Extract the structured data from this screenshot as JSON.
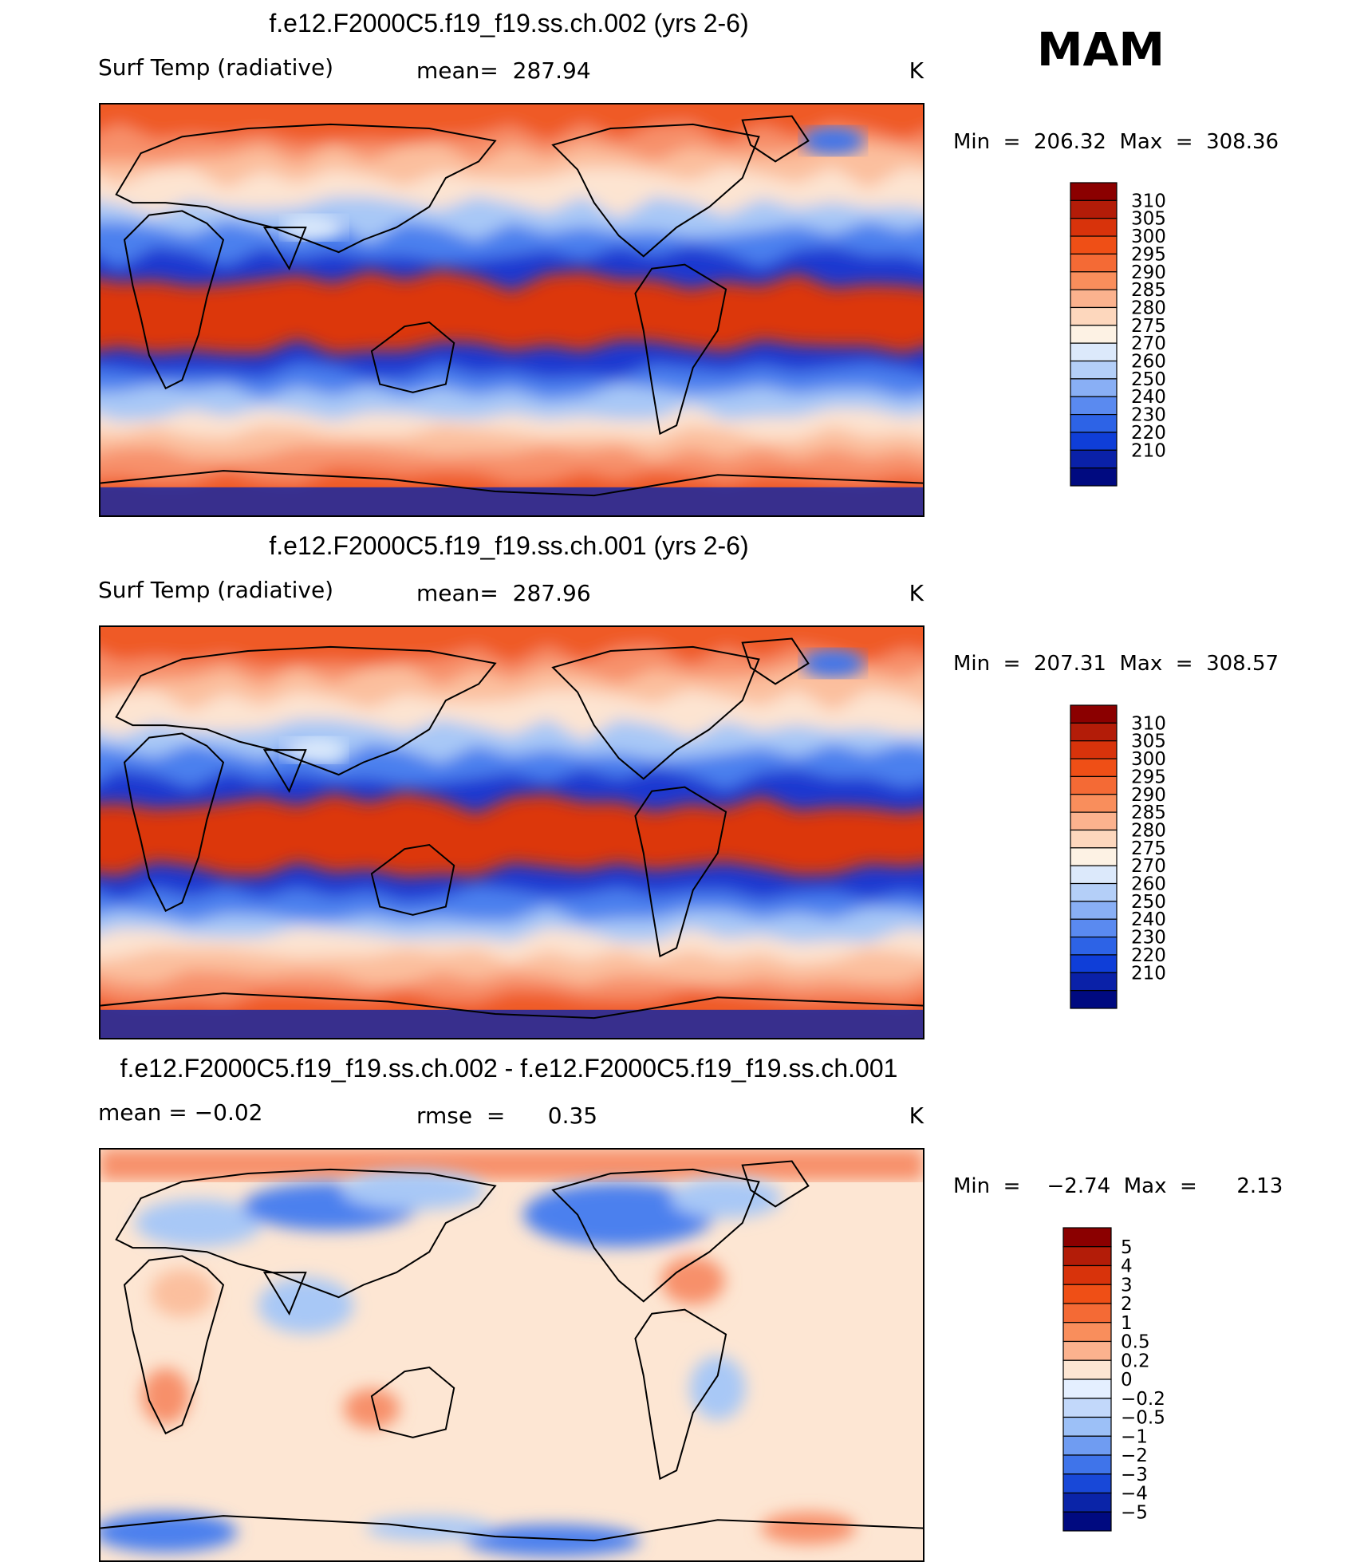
{
  "season": "MAM",
  "panels": [
    {
      "title": "f.e12.F2000C5.f19_f19.ss.ch.002 (yrs 2-6)",
      "subtitle_left": "Surf Temp (radiative)",
      "subtitle_center": "mean=  287.94",
      "units": "K",
      "minmax": "Min  =  206.32  Max  =  308.36",
      "colorbar_labels": [
        "310",
        "305",
        "300",
        "295",
        "290",
        "285",
        "280",
        "275",
        "270",
        "260",
        "250",
        "240",
        "230",
        "220",
        "210"
      ],
      "colorbar_colors": [
        "#8b0000",
        "#b31c08",
        "#d8330b",
        "#ef4f16",
        "#f46a35",
        "#f98e5c",
        "#fbb28e",
        "#fdd7bd",
        "#fdf2e4",
        "#dce9fb",
        "#b4cff8",
        "#89aff5",
        "#5a8af0",
        "#2d63e6",
        "#0f3ed8",
        "#0a21a8",
        "#000a80"
      ],
      "map_colors": [
        "#1a39d0",
        "#4b80ee",
        "#a8c8f6",
        "#fde4d1",
        "#fbbf9e",
        "#f7906a",
        "#ef5a27",
        "#dc370b"
      ],
      "map_levels": [
        0.13,
        0.22,
        0.31,
        0.42,
        0.56,
        0.7,
        0.85,
        1.0
      ]
    },
    {
      "title": "f.e12.F2000C5.f19_f19.ss.ch.001 (yrs 2-6)",
      "subtitle_left": "Surf Temp (radiative)",
      "subtitle_center": "mean=  287.96",
      "units": "K",
      "minmax": "Min  =  207.31  Max  =  308.57",
      "colorbar_labels": [
        "310",
        "305",
        "300",
        "295",
        "290",
        "285",
        "280",
        "275",
        "270",
        "260",
        "250",
        "240",
        "230",
        "220",
        "210"
      ],
      "colorbar_colors": [
        "#8b0000",
        "#b31c08",
        "#d8330b",
        "#ef4f16",
        "#f46a35",
        "#f98e5c",
        "#fbb28e",
        "#fdd7bd",
        "#fdf2e4",
        "#dce9fb",
        "#b4cff8",
        "#89aff5",
        "#5a8af0",
        "#2d63e6",
        "#0f3ed8",
        "#0a21a8",
        "#000a80"
      ],
      "map_colors": [
        "#1a39d0",
        "#4b80ee",
        "#a8c8f6",
        "#fde4d1",
        "#fbbf9e",
        "#f7906a",
        "#ef5a27",
        "#dc370b"
      ],
      "map_levels": [
        0.13,
        0.22,
        0.31,
        0.42,
        0.56,
        0.7,
        0.85,
        1.0
      ]
    },
    {
      "title": "f.e12.F2000C5.f19_f19.ss.ch.002 - f.e12.F2000C5.f19_f19.ss.ch.001",
      "subtitle_left": "mean  =    −0.02",
      "subtitle_center": "rmse  =      0.35",
      "units": "K",
      "minmax": "Min  =    −2.74  Max  =      2.13",
      "colorbar_labels": [
        "5",
        "4",
        "3",
        "2",
        "1",
        "0.5",
        "0.2",
        "0",
        "−0.2",
        "−0.5",
        "−1",
        "−2",
        "−3",
        "−4",
        "−5"
      ],
      "colorbar_colors": [
        "#8b0000",
        "#b31c08",
        "#d8330b",
        "#ef4f16",
        "#f46a35",
        "#f98e5c",
        "#fbb28e",
        "#fde6d3",
        "#e4efff",
        "#c2d8fa",
        "#9cc0f7",
        "#6f9cf2",
        "#3f74ea",
        "#1848d8",
        "#0a24a8",
        "#000a80"
      ],
      "map_colors": [
        "#4b80ee",
        "#a8c8f6",
        "#dceafb",
        "#fde6d3",
        "#fbbf9e",
        "#f7906a"
      ],
      "map_levels": [
        0.08,
        0.2,
        0.32,
        0.75,
        0.9,
        1.0
      ]
    }
  ],
  "chart_data": [
    {
      "type": "heatmap",
      "title": "f.e12.F2000C5.f19_f19.ss.ch.002 (yrs 2-6)",
      "variable": "Surf Temp (radiative)",
      "units": "K",
      "mean": 287.94,
      "min": 206.32,
      "max": 308.36,
      "contour_levels": [
        210,
        220,
        230,
        240,
        250,
        260,
        270,
        275,
        280,
        285,
        290,
        295,
        300,
        305,
        310
      ]
    },
    {
      "type": "heatmap",
      "title": "f.e12.F2000C5.f19_f19.ss.ch.001 (yrs 2-6)",
      "variable": "Surf Temp (radiative)",
      "units": "K",
      "mean": 287.96,
      "min": 207.31,
      "max": 308.57,
      "contour_levels": [
        210,
        220,
        230,
        240,
        250,
        260,
        270,
        275,
        280,
        285,
        290,
        295,
        300,
        305,
        310
      ]
    },
    {
      "type": "heatmap",
      "title": "f.e12.F2000C5.f19_f19.ss.ch.002 - f.e12.F2000C5.f19_f19.ss.ch.001",
      "units": "K",
      "mean": -0.02,
      "rmse": 0.35,
      "min": -2.74,
      "max": 2.13,
      "contour_levels": [
        -5,
        -4,
        -3,
        -2,
        -1,
        -0.5,
        -0.2,
        0,
        0.2,
        0.5,
        1,
        2,
        3,
        4,
        5
      ]
    }
  ]
}
